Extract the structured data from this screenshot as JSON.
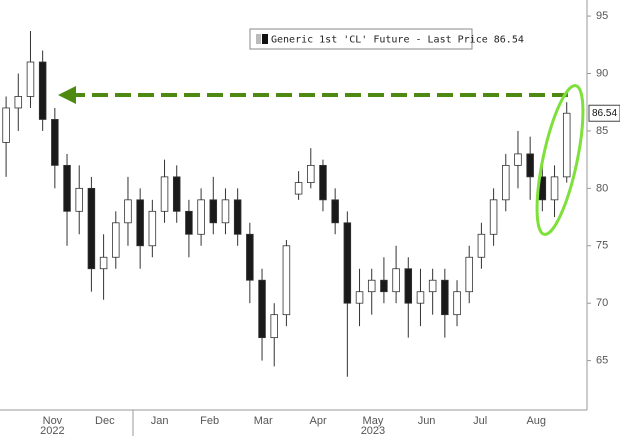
{
  "chart_data": {
    "type": "candlestick",
    "legend": "Generic 1st 'CL' Future - Last Price 86.54",
    "categories": [
      null,
      null,
      null,
      null,
      null,
      null,
      null,
      null,
      null,
      null,
      null,
      null,
      null,
      null,
      null,
      null,
      null,
      null,
      null,
      null,
      null,
      null,
      null,
      null,
      null,
      null,
      null,
      null,
      null,
      null,
      null,
      null,
      null,
      null,
      null,
      null,
      null,
      null,
      null,
      null,
      null,
      null,
      null,
      null,
      null,
      null,
      null
    ],
    "open": [
      84,
      87,
      88,
      91,
      86,
      82,
      78,
      80,
      73,
      74,
      77,
      79,
      75,
      78,
      81,
      78,
      76,
      79,
      77,
      79,
      76,
      72,
      67,
      69,
      79.5,
      80.5,
      82,
      79,
      77,
      70,
      71,
      72,
      71,
      73,
      70,
      71,
      72,
      69,
      71,
      74,
      76,
      79,
      82,
      83,
      81,
      79,
      81
    ],
    "high": [
      88,
      90,
      93.7,
      92,
      87,
      83,
      82,
      81,
      76,
      78,
      81,
      80,
      79,
      82.5,
      82,
      79,
      80,
      81,
      80,
      80,
      77,
      73,
      70,
      75.5,
      81.5,
      83.5,
      82.5,
      80,
      78,
      73,
      73,
      74,
      75,
      74,
      73,
      73,
      73,
      72,
      75,
      77,
      80,
      83,
      85,
      84.5,
      82,
      82,
      87.5
    ],
    "low": [
      81,
      85,
      87,
      85,
      80,
      75,
      76,
      71,
      70.3,
      73,
      75,
      73,
      74,
      77,
      77,
      74,
      75,
      76,
      76,
      75,
      70,
      65,
      64.5,
      68,
      79,
      80,
      78,
      76,
      63.6,
      68,
      69,
      70,
      70,
      67,
      68,
      69,
      67,
      68,
      70,
      73,
      75,
      78,
      80,
      79,
      78,
      77.5,
      80.5
    ],
    "close": [
      87,
      88,
      91,
      86,
      82,
      78,
      80,
      73,
      74,
      77,
      79,
      75,
      78,
      81,
      78,
      76,
      79,
      77,
      79,
      76,
      72,
      67,
      69,
      75,
      80.5,
      82,
      79,
      77,
      70,
      71,
      72,
      71,
      73,
      70,
      71,
      72,
      69,
      71,
      74,
      76,
      79,
      82,
      83,
      81,
      79,
      81,
      86.54
    ],
    "up_color": "#ffffff",
    "down_color": "#1a1a1a",
    "xlim": [
      -0.5,
      47.5
    ],
    "xticks": [
      {
        "value": 3.8,
        "label": "Nov"
      },
      {
        "value": 8.1,
        "label": "Dec"
      },
      {
        "value": 12.6,
        "label": "Jan"
      },
      {
        "value": 16.7,
        "label": "Feb"
      },
      {
        "value": 21.1,
        "label": "Mar"
      },
      {
        "value": 25.6,
        "label": "Apr"
      },
      {
        "value": 30.1,
        "label": "May"
      },
      {
        "value": 34.5,
        "label": "Jun"
      },
      {
        "value": 38.9,
        "label": "Jul"
      },
      {
        "value": 43.5,
        "label": "Aug"
      }
    ],
    "years": [
      {
        "value": 3.8,
        "label": "2022"
      },
      {
        "value": 30.1,
        "label": "2023"
      }
    ],
    "ylim": [
      60.7,
      96.4
    ],
    "yticks": [
      65,
      70,
      75,
      80,
      85,
      90,
      95
    ]
  }
}
